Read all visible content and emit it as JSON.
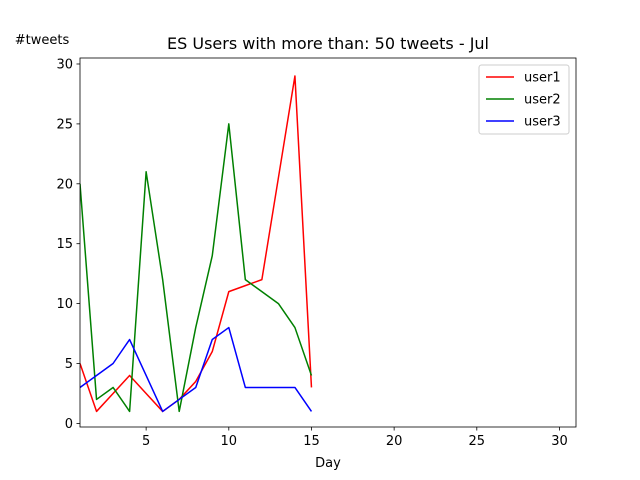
{
  "chart_data": {
    "type": "line",
    "title": "ES Users with more than: 50 tweets - Jul",
    "xlabel": "Day",
    "ylabel": "#tweets",
    "xlim": [
      1,
      31
    ],
    "ylim": [
      -0.3,
      30.5
    ],
    "xticks": [
      5,
      10,
      15,
      20,
      25,
      30
    ],
    "yticks": [
      0,
      5,
      10,
      15,
      20,
      25,
      30
    ],
    "grid": false,
    "legend_position": "top-right",
    "series": [
      {
        "name": "user1",
        "color": "#ff0000",
        "x": [
          1,
          2,
          3,
          4,
          5,
          6,
          7,
          8,
          9,
          10,
          11,
          12,
          13,
          14,
          15
        ],
        "y": [
          5,
          1,
          2.5,
          4,
          2.5,
          1,
          2,
          3.5,
          6,
          11,
          11.5,
          12,
          20.5,
          29,
          3
        ]
      },
      {
        "name": "user2",
        "color": "#008000",
        "x": [
          1,
          2,
          3,
          4,
          5,
          6,
          7,
          8,
          9,
          10,
          11,
          12,
          13,
          14,
          15
        ],
        "y": [
          20,
          2,
          3,
          1,
          21,
          12,
          1,
          8,
          14,
          25,
          12,
          11,
          10,
          8,
          4
        ]
      },
      {
        "name": "user3",
        "color": "#0000ff",
        "x": [
          1,
          2,
          3,
          4,
          5,
          6,
          7,
          8,
          9,
          10,
          11,
          12,
          13,
          14,
          15
        ],
        "y": [
          3,
          4,
          5,
          7,
          4,
          1,
          2,
          3,
          7,
          8,
          3,
          3,
          3,
          3,
          1
        ]
      }
    ]
  }
}
